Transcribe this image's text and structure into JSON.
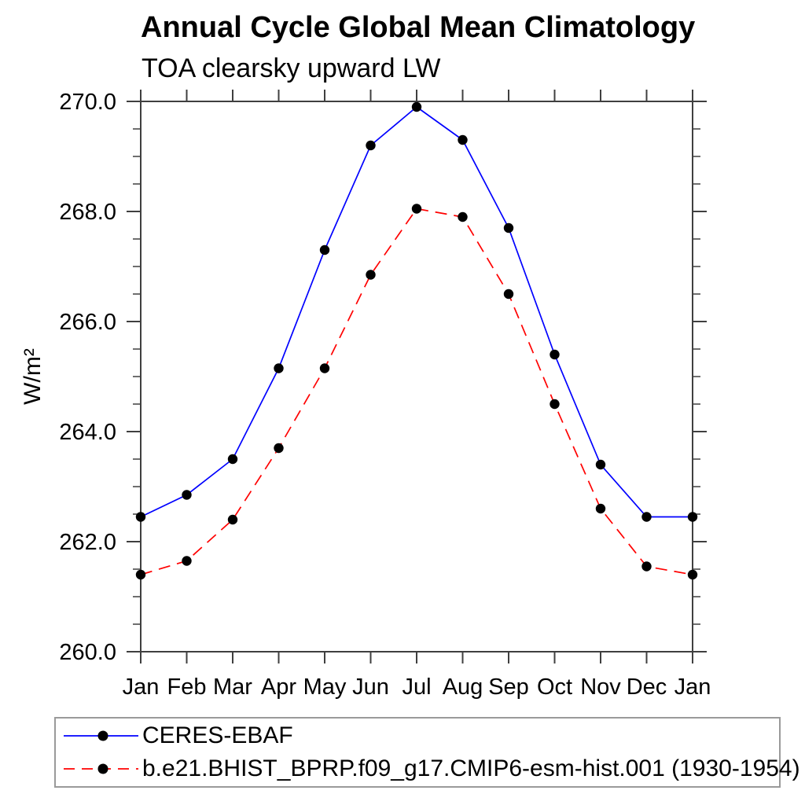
{
  "colors": {
    "axis": "#3f3f3f",
    "text": "#000000",
    "marker": "#000000",
    "legend_border": "#9a9a9a",
    "series1": "#0000ff",
    "series2": "#ff0000"
  },
  "chart_data": {
    "type": "line",
    "title": "Annual Cycle Global Mean Climatology",
    "subtitle": "TOA clearsky upward LW",
    "xlabel": "",
    "ylabel": "W/m²",
    "categories": [
      "Jan",
      "Feb",
      "Mar",
      "Apr",
      "May",
      "Jun",
      "Jul",
      "Aug",
      "Sep",
      "Oct",
      "Nov",
      "Dec",
      "Jan"
    ],
    "series": [
      {
        "name": "CERES-EBAF",
        "color": "#0000ff",
        "line_style": "solid",
        "marker": "black-filled-circle",
        "values": [
          262.45,
          262.85,
          263.5,
          265.15,
          267.3,
          269.2,
          269.9,
          269.3,
          267.7,
          265.4,
          263.4,
          262.45,
          262.45
        ]
      },
      {
        "name": "b.e21.BHIST_BPRP.f09_g17.CMIP6-esm-hist.001 (1930-1954)",
        "color": "#ff0000",
        "line_style": "dashed",
        "marker": "black-filled-circle",
        "values": [
          261.4,
          261.65,
          262.4,
          263.7,
          265.15,
          266.85,
          268.05,
          267.9,
          266.5,
          264.5,
          262.6,
          261.55,
          261.4
        ]
      }
    ],
    "ylim": [
      260.0,
      270.0
    ],
    "y_major_ticks": [
      260.0,
      262.0,
      264.0,
      266.0,
      268.0,
      270.0
    ],
    "y_tick_labels": [
      "260.0",
      "262.0",
      "264.0",
      "266.0",
      "268.0",
      "270.0"
    ],
    "y_minor_step": 0.5,
    "grid": false,
    "frame": "box-with-outward-ticks",
    "legend_position": "bottom-left-box"
  }
}
